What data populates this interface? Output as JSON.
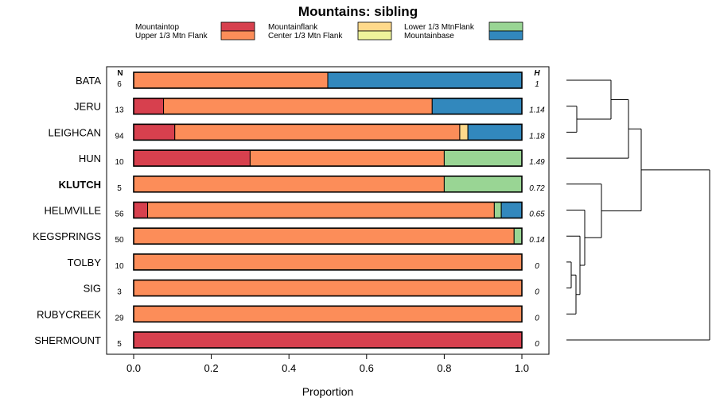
{
  "chart_data": {
    "type": "bar",
    "orientation": "horizontal",
    "stacked": true,
    "title": "Mountains: sibling",
    "xlabel": "Proportion",
    "ylabel": "",
    "xlim": [
      0,
      1
    ],
    "x_ticks": [
      "0.0",
      "0.2",
      "0.4",
      "0.6",
      "0.8",
      "1.0"
    ],
    "n_header": "N",
    "h_header": "H",
    "legend": [
      {
        "name": "Mountaintop",
        "color": "#d7404e"
      },
      {
        "name": "Mountainflank",
        "color": "#fed98b"
      },
      {
        "name": "Lower 1/3 MtnFlank",
        "color": "#99d594"
      },
      {
        "name": "Upper 1/3 Mtn Flank",
        "color": "#fc8d59"
      },
      {
        "name": "Center 1/3 Mtn Flank",
        "color": "#eef39b"
      },
      {
        "name": "Mountainbase",
        "color": "#3288bd"
      }
    ],
    "categories": [
      "BATA",
      "JERU",
      "LEIGHCAN",
      "HUN",
      "KLUTCH",
      "HELMVILLE",
      "KEGSPRINGS",
      "TOLBY",
      "SIG",
      "RUBYCREEK",
      "SHERMOUNT"
    ],
    "highlighted": "KLUTCH",
    "series": [
      {
        "name": "Mountaintop",
        "values": [
          0,
          0.077,
          0.106,
          0.3,
          0,
          0.036,
          0,
          0,
          0,
          0,
          1.0
        ]
      },
      {
        "name": "Upper 1/3 Mtn Flank",
        "values": [
          0.5,
          0.692,
          0.734,
          0.5,
          0.8,
          0.893,
          0.98,
          1.0,
          1.0,
          1.0,
          0
        ]
      },
      {
        "name": "Mountainflank",
        "values": [
          0,
          0,
          0.021,
          0,
          0,
          0,
          0,
          0,
          0,
          0,
          0
        ]
      },
      {
        "name": "Lower 1/3 MtnFlank",
        "values": [
          0,
          0,
          0,
          0.2,
          0.2,
          0.018,
          0.02,
          0,
          0,
          0,
          0
        ]
      },
      {
        "name": "Mountainbase",
        "values": [
          0.5,
          0.231,
          0.139,
          0,
          0,
          0.053,
          0,
          0,
          0,
          0,
          0
        ]
      }
    ],
    "n": [
      "6",
      "13",
      "94",
      "10",
      "5",
      "56",
      "50",
      "10",
      "3",
      "29",
      "5"
    ],
    "h": [
      "1",
      "1.14",
      "1.18",
      "1.49",
      "0.72",
      "0.65",
      "0.14",
      "0",
      "0",
      "0",
      "0"
    ],
    "dendrogram": "hierarchical clustering of rows shown to the right of the bars"
  }
}
